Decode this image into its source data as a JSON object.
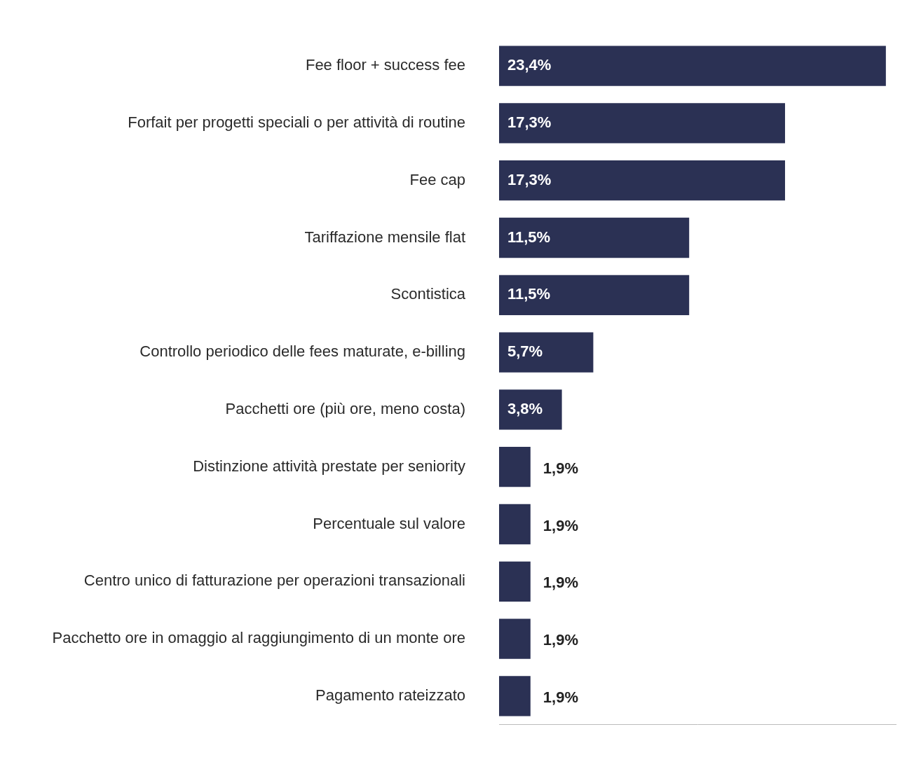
{
  "chart_data": {
    "type": "bar",
    "orientation": "horizontal",
    "categories": [
      "Fee floor + success fee",
      "Forfait per progetti speciali o per attività di routine",
      "Fee cap",
      "Tariffazione mensile flat",
      "Scontistica",
      "Controllo periodico delle fees maturate, e-billing",
      "Pacchetti ore (più ore, meno costa)",
      "Distinzione attività prestate per seniority",
      "Percentuale sul valore",
      "Centro unico di fatturazione per operazioni transazionali",
      "Pacchetto ore in omaggio al raggiungimento di un monte ore",
      "Pagamento rateizzato"
    ],
    "values": [
      23.4,
      17.3,
      17.3,
      11.5,
      11.5,
      5.7,
      3.8,
      1.9,
      1.9,
      1.9,
      1.9,
      1.9
    ],
    "value_labels": [
      "23,4%",
      "17,3%",
      "17,3%",
      "11,5%",
      "11,5%",
      "5,7%",
      "3,8%",
      "1,9%",
      "1,9%",
      "1,9%",
      "1,9%",
      "1,9%"
    ],
    "color": "#2b3154",
    "xlim": [
      0,
      24
    ],
    "grid": false,
    "data_labels": true,
    "tick_labels": "y"
  }
}
